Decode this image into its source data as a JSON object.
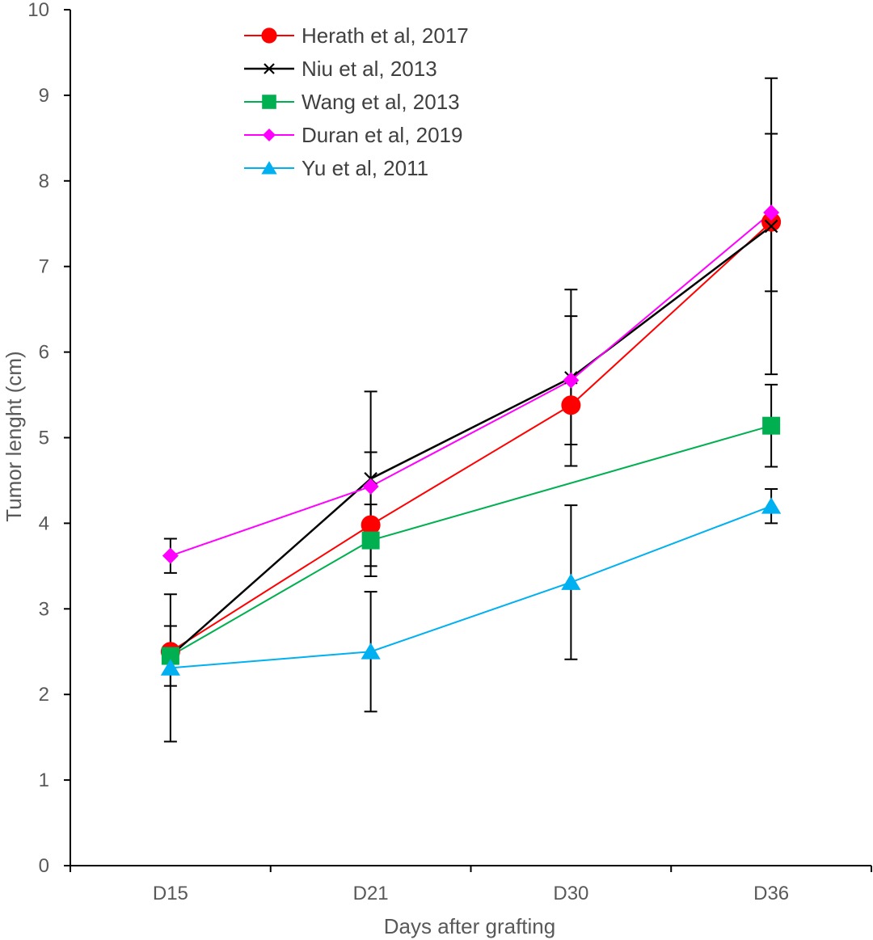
{
  "chart_data": {
    "type": "line",
    "xlabel": "Days after grafting",
    "ylabel": "Tumor lenght (cm)",
    "categories": [
      "D15",
      "D21",
      "D30",
      "D36"
    ],
    "ylim": [
      0,
      10
    ],
    "yticks": [
      "0",
      "1",
      "2",
      "3",
      "4",
      "5",
      "6",
      "7",
      "8",
      "9",
      "10"
    ],
    "grid": false,
    "legend_position": "top-left inside",
    "series": [
      {
        "name": "Herath et al, 2017",
        "color": "#FF0000",
        "marker": "circle",
        "values": [
          2.5,
          3.98,
          5.38,
          7.52
        ],
        "error": [
          null,
          null,
          null,
          null
        ]
      },
      {
        "name": "Niu et al, 2013",
        "color": "#000000",
        "marker": "x",
        "values": [
          2.45,
          4.52,
          5.7,
          7.47
        ],
        "error": [
          null,
          1.02,
          1.03,
          1.73
        ]
      },
      {
        "name": "Wang et al, 2013",
        "color": "#00B050",
        "marker": "square",
        "values": [
          2.45,
          3.8,
          null,
          5.14
        ],
        "error": [
          0.35,
          0.42,
          null,
          0.48
        ]
      },
      {
        "name": "Duran et al, 2019",
        "color": "#FF00FF",
        "marker": "diamond",
        "values": [
          3.62,
          4.43,
          5.67,
          7.63
        ],
        "error": [
          0.2,
          0.4,
          0.75,
          0.92
        ]
      },
      {
        "name": "Yu et al, 2011",
        "color": "#00B0F0",
        "marker": "triangle",
        "values": [
          2.31,
          2.5,
          3.31,
          4.2
        ],
        "error": [
          0.86,
          0.7,
          0.9,
          0.2
        ]
      }
    ]
  }
}
